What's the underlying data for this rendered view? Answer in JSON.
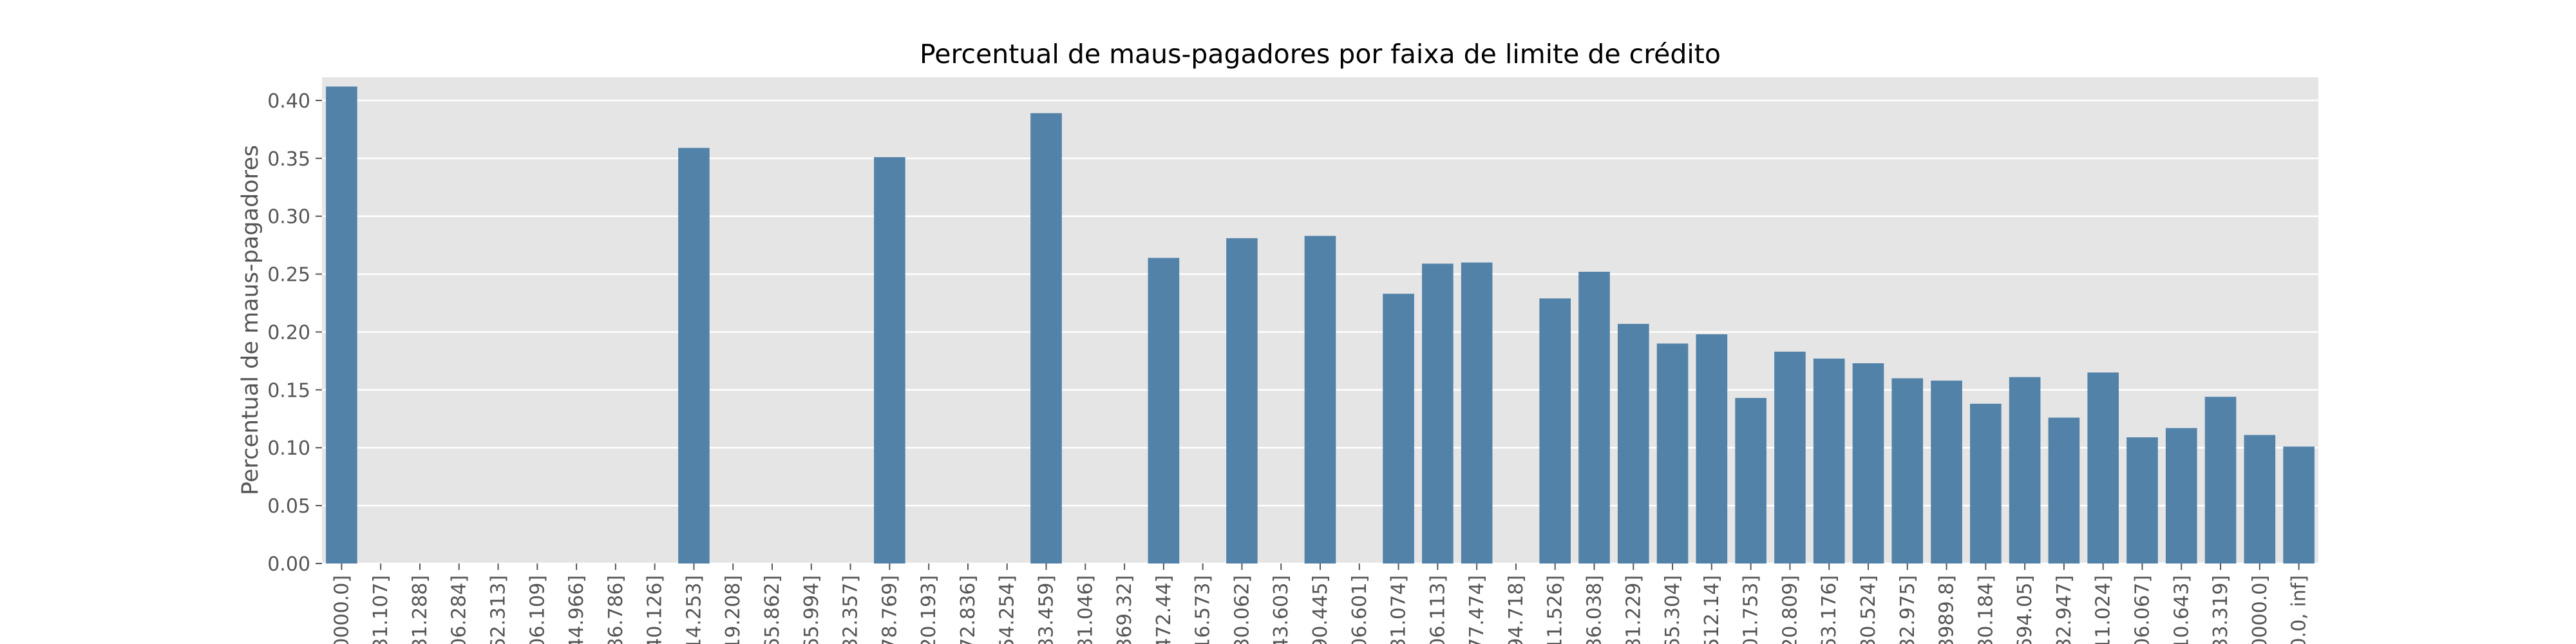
{
  "chart_data": {
    "type": "bar",
    "title": "Percentual de maus-pagadores por faixa de limite de crédito",
    "xlabel": "",
    "ylabel": "Percentual de maus-pagadores",
    "ylim": [
      0,
      0.42
    ],
    "yticks": [
      "0.00",
      "0.05",
      "0.10",
      "0.15",
      "0.20",
      "0.25",
      "0.30",
      "0.35",
      "0.40"
    ],
    "grid": true,
    "bar_color": "#5382a9",
    "background_color": "#e5e5e5",
    "categories": [
      "0000.0]",
      "31.107]",
      "31.288]",
      "06.284]",
      "62.313]",
      "06.109]",
      "44.966]",
      "86.786]",
      "40.126]",
      "14.253]",
      "19.208]",
      "65.862]",
      "65.994]",
      "32.357]",
      "78.769]",
      "20.193]",
      "72.836]",
      "54.254]",
      "83.459]",
      "81.046]",
      "369.32]",
      "472.44]",
      "16.573]",
      "30.062]",
      "43.603]",
      "90.445]",
      "06.601]",
      "31.074]",
      "06.113]",
      "77.474]",
      "94.718]",
      "11.526]",
      "86.038]",
      "81.229]",
      "65.304]",
      "512.14]",
      "01.753]",
      "20.809]",
      "63.176]",
      "30.524]",
      "32.975]",
      "3989.8]",
      "30.184]",
      "694.05]",
      "32.947]",
      "11.024]",
      "06.067]",
      "10.643]",
      "33.319]",
      "0000.0]",
      "0.0, inf]"
    ],
    "values": [
      0.412,
      0,
      0,
      0,
      0,
      0,
      0,
      0,
      0,
      0.359,
      0,
      0,
      0,
      0,
      0.351,
      0,
      0,
      0,
      0.389,
      0,
      0,
      0.264,
      0,
      0.281,
      0,
      0.283,
      0,
      0.233,
      0.259,
      0.26,
      0,
      0.229,
      0.252,
      0.207,
      0.19,
      0.198,
      0.143,
      0.183,
      0.177,
      0.173,
      0.16,
      0.158,
      0.138,
      0.161,
      0.126,
      0.165,
      0.109,
      0.117,
      0.144,
      0.111,
      0.101
    ]
  }
}
